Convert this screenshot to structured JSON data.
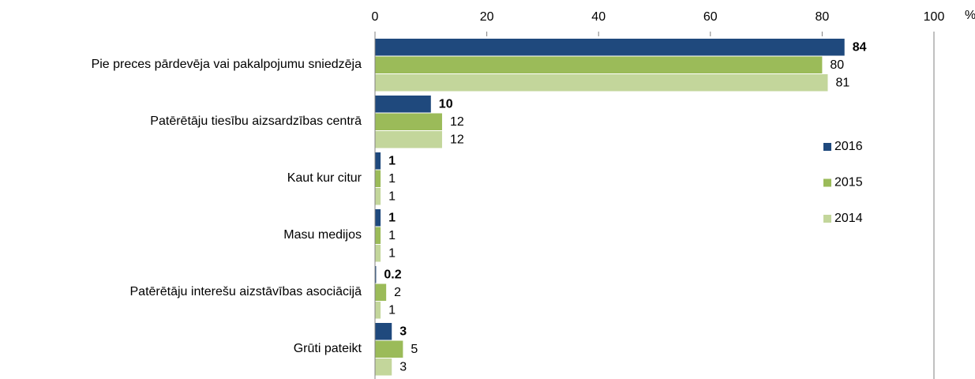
{
  "chart_data": {
    "type": "hbar",
    "x_label": "%",
    "categories": [
      "Pie preces pārdevēja vai pakalpojumu sniedzēja",
      "Patērētāju tiesību aizsardzības centrā",
      "Kaut kur citur",
      "Masu medijos",
      "Patērētāju interešu aizstāvības asociācijā",
      "Grūti pateikt"
    ],
    "series": [
      {
        "name": "2016",
        "color": "#1f497d",
        "values": [
          84,
          10,
          1,
          1,
          0.2,
          3
        ]
      },
      {
        "name": "2015",
        "color": "#9bbb59",
        "values": [
          80,
          12,
          1,
          1,
          2,
          5
        ]
      },
      {
        "name": "2014",
        "color": "#c3d69b",
        "values": [
          81,
          12,
          1,
          1,
          1,
          3
        ]
      }
    ],
    "xlim": [
      0,
      100
    ],
    "xticks": [
      0,
      20,
      40,
      60,
      80,
      100
    ]
  }
}
